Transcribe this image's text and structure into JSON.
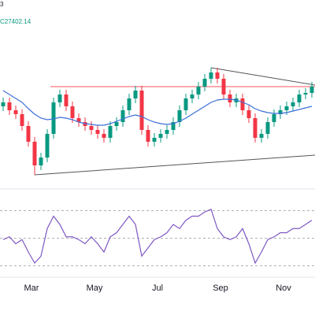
{
  "chart_data": {
    "type": "candlestick",
    "header": [
      "3",
      "C27402.14"
    ],
    "categories": [
      null,
      null,
      null,
      null,
      null,
      "Mar",
      null,
      null,
      null,
      null,
      null,
      null,
      null,
      null,
      null,
      "May",
      null,
      null,
      null,
      null,
      null,
      null,
      null,
      null,
      null,
      "Jul",
      null,
      null,
      null,
      null,
      null,
      null,
      null,
      null,
      null,
      "Sep",
      null,
      null,
      null,
      null,
      null,
      null,
      null,
      null,
      null,
      "Nov",
      null,
      null,
      null,
      null
    ],
    "open": [
      27150,
      27200,
      27100,
      27050,
      26900,
      26700,
      26400,
      26500,
      26800,
      27200,
      27300,
      27150,
      27000,
      26950,
      26900,
      26850,
      26800,
      26750,
      26900,
      26950,
      27100,
      27250,
      27350,
      26850,
      26700,
      26750,
      26800,
      26850,
      26950,
      27100,
      27250,
      27300,
      27400,
      27500,
      27580,
      27500,
      27300,
      27200,
      27250,
      27100,
      27000,
      26750,
      26800,
      26950,
      27050,
      27100,
      27150,
      27200,
      27300,
      27320
    ],
    "high": [
      27260,
      27260,
      27160,
      27110,
      26960,
      26760,
      26560,
      26860,
      27260,
      27360,
      27360,
      27210,
      27060,
      27010,
      26960,
      26910,
      26860,
      26960,
      27010,
      27160,
      27310,
      27410,
      27410,
      26910,
      26810,
      26860,
      26910,
      27010,
      27160,
      27310,
      27360,
      27460,
      27560,
      27640,
      27640,
      27560,
      27360,
      27310,
      27310,
      27160,
      27060,
      26860,
      27010,
      27110,
      27160,
      27210,
      27260,
      27360,
      27380,
      27460
    ],
    "low": [
      27090,
      27040,
      26990,
      26840,
      26640,
      26280,
      26340,
      26440,
      26740,
      27140,
      27090,
      26940,
      26890,
      26840,
      26790,
      26740,
      26690,
      26690,
      26840,
      26890,
      27040,
      27190,
      26790,
      26640,
      26640,
      26690,
      26740,
      26790,
      26890,
      27040,
      27190,
      27240,
      27340,
      27440,
      27440,
      27240,
      27140,
      27140,
      27040,
      26940,
      26690,
      26690,
      26740,
      26890,
      26990,
      27040,
      27090,
      27140,
      27240,
      27260
    ],
    "close": [
      27200,
      27100,
      27050,
      26900,
      26700,
      26400,
      26500,
      26800,
      27200,
      27300,
      27150,
      27000,
      26950,
      26900,
      26850,
      26800,
      26750,
      26900,
      26950,
      27100,
      27250,
      27350,
      26850,
      26700,
      26750,
      26800,
      26850,
      26950,
      27100,
      27250,
      27300,
      27400,
      27500,
      27580,
      27500,
      27300,
      27200,
      27250,
      27100,
      27000,
      26750,
      26800,
      26950,
      27050,
      27100,
      27150,
      27200,
      27300,
      27320,
      27402.14
    ],
    "ylim": [
      26100,
      28000
    ],
    "colors": {
      "up": "#089981",
      "down": "#f23645"
    },
    "moving_average": {
      "color": "#3d6fd8",
      "values": [
        27350,
        27300,
        27250,
        27200,
        27120,
        27050,
        27000,
        26980,
        26990,
        27010,
        27000,
        26980,
        26950,
        26930,
        26920,
        26910,
        26910,
        26930,
        26960,
        26990,
        27020,
        27040,
        27020,
        26980,
        26950,
        26930,
        26920,
        26930,
        26960,
        27000,
        27050,
        27100,
        27150,
        27200,
        27230,
        27240,
        27240,
        27230,
        27200,
        27170,
        27120,
        27090,
        27070,
        27060,
        27060,
        27070,
        27090,
        27110,
        27130,
        27150
      ]
    },
    "levels": [
      {
        "value": 27400,
        "x": [
          7.5,
          49.5
        ],
        "color": "#f7525f"
      }
    ],
    "trendlines": [
      {
        "x": [
          5,
          49.5
        ],
        "y": [
          26280,
          26530
        ],
        "color": "#555555"
      },
      {
        "x": [
          33,
          49.5
        ],
        "y": [
          27640,
          27420
        ],
        "color": "#555555"
      }
    ],
    "rsi": {
      "color": "#7e57c2",
      "ylim": [
        20,
        80
      ],
      "levels": [
        30,
        50,
        70
      ],
      "level_color": "#9598a1",
      "values": [
        49,
        51,
        46,
        49,
        40,
        32,
        37,
        57,
        66,
        60,
        51,
        51,
        49,
        46,
        51,
        46,
        40,
        51,
        54,
        60,
        66,
        60,
        37,
        43,
        49,
        51,
        54,
        60,
        57,
        63,
        66,
        66,
        69,
        71,
        57,
        51,
        49,
        51,
        57,
        46,
        32,
        40,
        49,
        51,
        54,
        54,
        57,
        57,
        60,
        63
      ]
    }
  }
}
